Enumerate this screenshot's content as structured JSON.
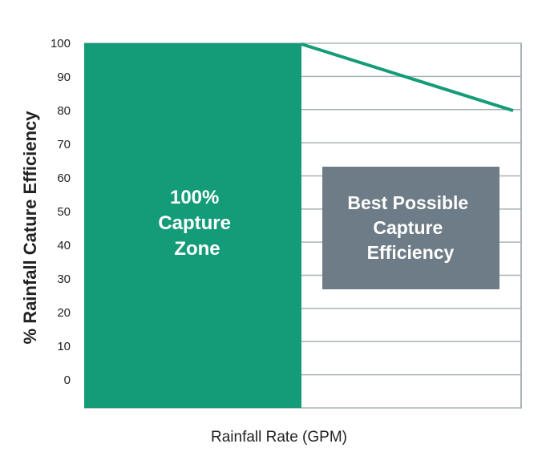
{
  "chart_data": {
    "type": "area",
    "title": "",
    "xlabel": "Rainfall Rate (GPM)",
    "ylabel": "% Rainfall Cature Efficiency",
    "ylim": [
      0,
      100
    ],
    "yticks": [
      "100",
      "90",
      "80",
      "70",
      "60",
      "50",
      "40",
      "30",
      "20",
      "10",
      "0"
    ],
    "grid": true,
    "zone": {
      "label_lines": [
        "100%",
        "Capture",
        "Zone"
      ],
      "value": 100,
      "color": "#149b78"
    },
    "line": {
      "values": [
        100,
        80
      ],
      "color": "#149b78"
    },
    "annotation": {
      "label_lines": [
        "Best Possible",
        "Capture",
        "Efficiency"
      ],
      "color": "#6d7c86"
    }
  }
}
